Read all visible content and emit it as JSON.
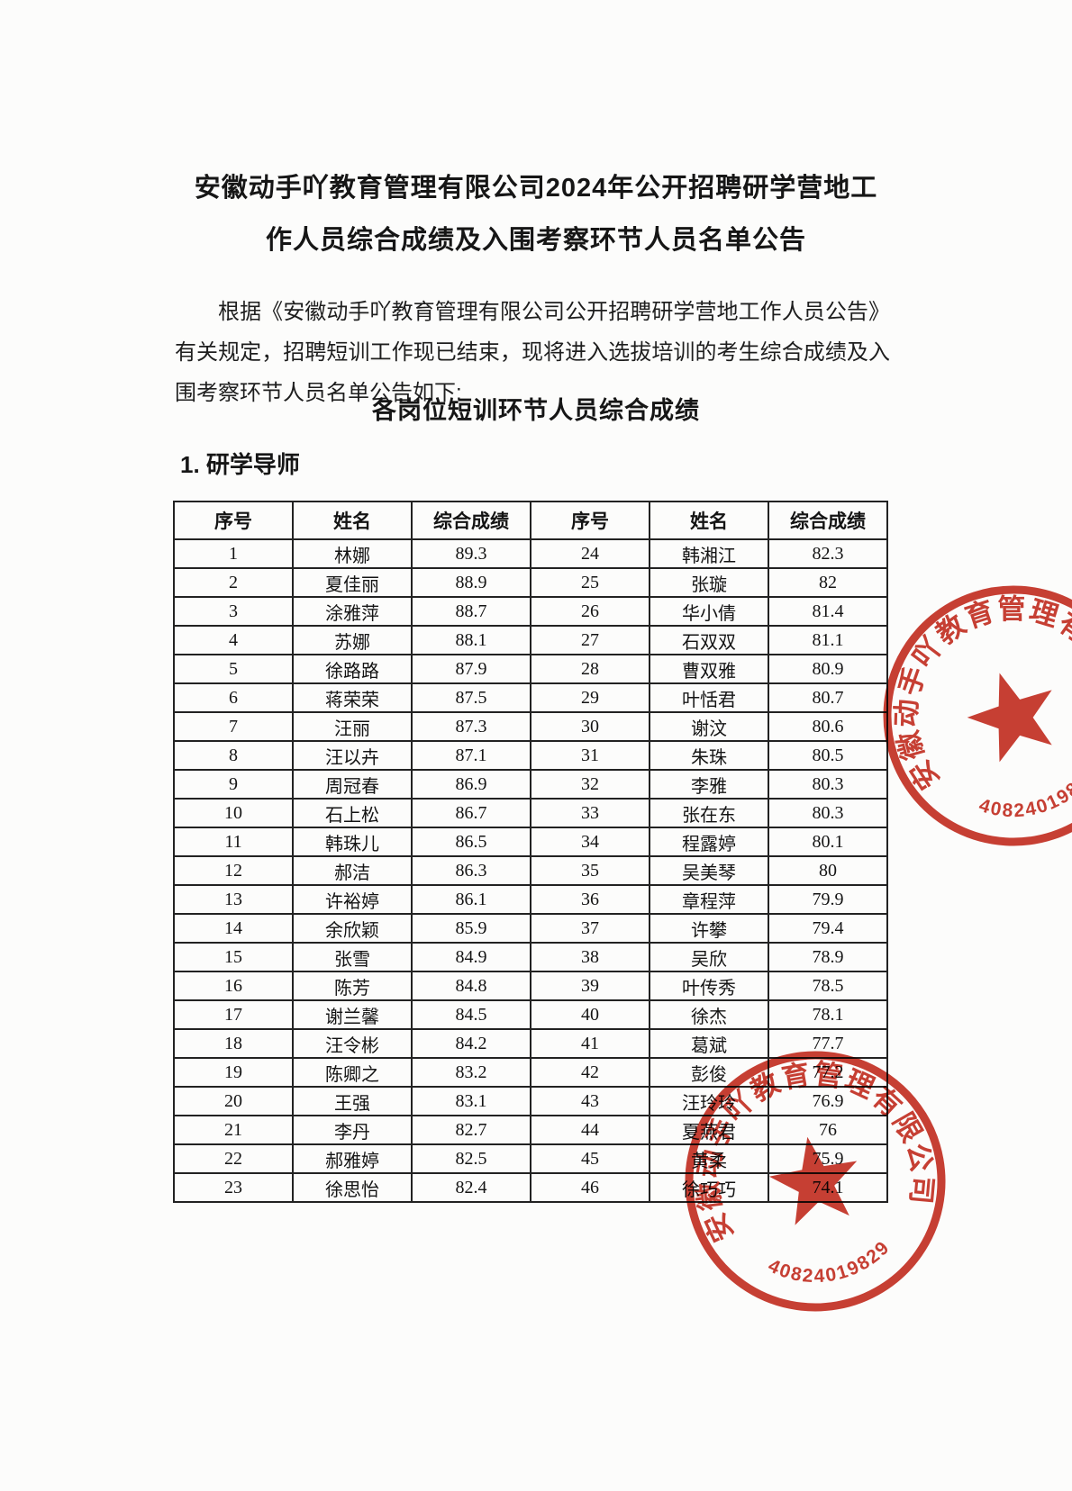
{
  "page": {
    "title_line1": "安徽动手吖教育管理有限公司2024年公开招聘研学营地工",
    "title_line2": "作人员综合成绩及入围考察环节人员名单公告",
    "intro_paragraph": "根据《安徽动手吖教育管理有限公司公开招聘研学营地工作人员公告》有关规定，招聘短训工作现已结束，现将进入选拔培训的考生综合成绩及入围考察环节人员名单公告如下:",
    "section_title": "各岗位短训环节人员综合成绩",
    "list_heading": "1. 研学导师"
  },
  "table": {
    "headers": [
      "序号",
      "姓名",
      "综合成绩",
      "序号",
      "姓名",
      "综合成绩"
    ],
    "rows": [
      [
        "1",
        "林娜",
        "89.3",
        "24",
        "韩湘江",
        "82.3"
      ],
      [
        "2",
        "夏佳丽",
        "88.9",
        "25",
        "张璇",
        "82"
      ],
      [
        "3",
        "涂雅萍",
        "88.7",
        "26",
        "华小倩",
        "81.4"
      ],
      [
        "4",
        "苏娜",
        "88.1",
        "27",
        "石双双",
        "81.1"
      ],
      [
        "5",
        "徐路路",
        "87.9",
        "28",
        "曹双雅",
        "80.9"
      ],
      [
        "6",
        "蒋荣荣",
        "87.5",
        "29",
        "叶恬君",
        "80.7"
      ],
      [
        "7",
        "汪丽",
        "87.3",
        "30",
        "谢汶",
        "80.6"
      ],
      [
        "8",
        "汪以卉",
        "87.1",
        "31",
        "朱珠",
        "80.5"
      ],
      [
        "9",
        "周冠春",
        "86.9",
        "32",
        "李雅",
        "80.3"
      ],
      [
        "10",
        "石上松",
        "86.7",
        "33",
        "张在东",
        "80.3"
      ],
      [
        "11",
        "韩珠儿",
        "86.5",
        "34",
        "程露婷",
        "80.1"
      ],
      [
        "12",
        "郝洁",
        "86.3",
        "35",
        "吴美琴",
        "80"
      ],
      [
        "13",
        "许裕婷",
        "86.1",
        "36",
        "章程萍",
        "79.9"
      ],
      [
        "14",
        "余欣颖",
        "85.9",
        "37",
        "许攀",
        "79.4"
      ],
      [
        "15",
        "张雪",
        "84.9",
        "38",
        "吴欣",
        "78.9"
      ],
      [
        "16",
        "陈芳",
        "84.8",
        "39",
        "叶传秀",
        "78.5"
      ],
      [
        "17",
        "谢兰馨",
        "84.5",
        "40",
        "徐杰",
        "78.1"
      ],
      [
        "18",
        "汪令彬",
        "84.2",
        "41",
        "葛斌",
        "77.7"
      ],
      [
        "19",
        "陈卿之",
        "83.2",
        "42",
        "彭俊",
        "77.2"
      ],
      [
        "20",
        "王强",
        "83.1",
        "43",
        "汪玲玲",
        "76.9"
      ],
      [
        "21",
        "李丹",
        "82.7",
        "44",
        "夏燕君",
        "76"
      ],
      [
        "22",
        "郝雅婷",
        "82.5",
        "45",
        "黄柔",
        "75.9"
      ],
      [
        "23",
        "徐思怡",
        "82.4",
        "46",
        "徐巧巧",
        "74.1"
      ]
    ]
  },
  "stamp": {
    "company": "安徽动手吖教育管理有限公司",
    "number": "3408240198296",
    "color": "#c22418"
  }
}
